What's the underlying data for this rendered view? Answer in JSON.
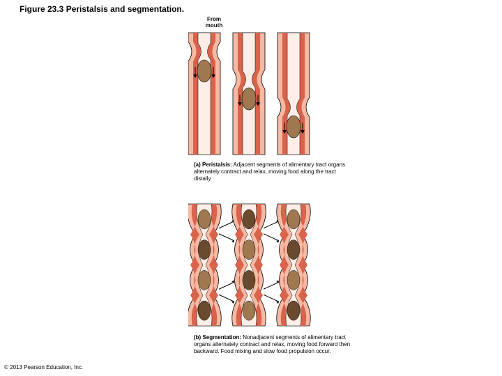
{
  "figure": {
    "number": "Figure 23.3",
    "title": "Peristalsis and segmentation.",
    "from_label": "From mouth",
    "copyright": "© 2013 Pearson Education, Inc."
  },
  "captions": {
    "a": {
      "label": "(a)",
      "term": "Peristalsis:",
      "text": "Adjacent segments of alimentary tract organs alternately contract and relax, moving food along the tract distally."
    },
    "b": {
      "label": "(b)",
      "term": "Segmentation:",
      "text": "Nonadjacent segments of alimentary tract organs alternately contract and relax, moving food forward then backward. Food mixing and slow food propulsion occur."
    }
  },
  "style": {
    "wall_outer": "#f6b9a4",
    "wall_inner": "#d9634b",
    "lumen": "#fdeee8",
    "bolus": "#a07850",
    "bolus_dark": "#6a4a2f",
    "stroke": "#000000",
    "arrow": "#000000",
    "background": "#ffffff"
  },
  "diagram": {
    "peristalsis": {
      "type": "infographic",
      "tubes": 3,
      "tube_width": 46,
      "tube_height": 175,
      "tube_gap": 18,
      "bolus_positions_y": [
        55,
        95,
        135
      ]
    },
    "segmentation": {
      "type": "infographic",
      "tubes": 3,
      "tube_width": 46,
      "tube_height": 175,
      "tube_gap": 18,
      "segments": 4
    }
  }
}
